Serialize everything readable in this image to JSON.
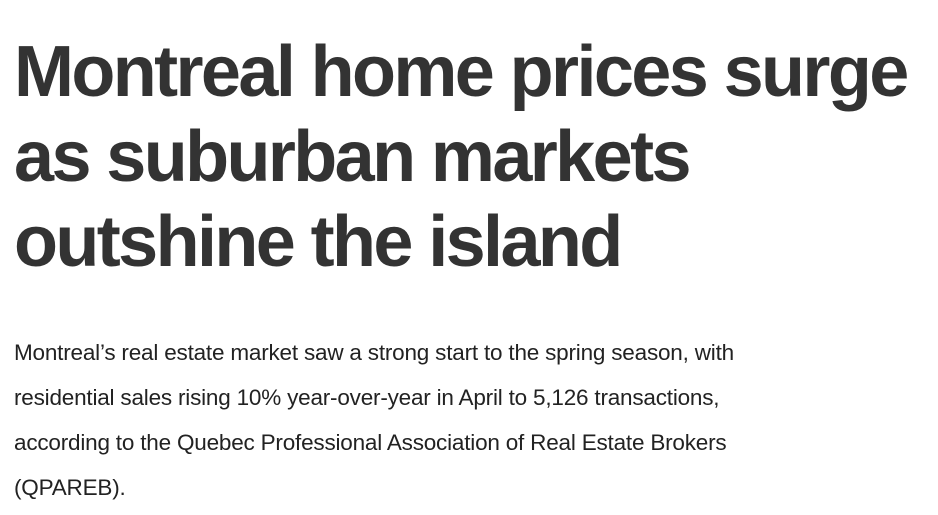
{
  "article": {
    "headline_lines": [
      "Montreal home prices surge",
      "as suburban markets",
      "outshine the island"
    ],
    "body_lines": [
      "Montreal’s real estate market saw a strong start to the spring season, with",
      "residential sales rising 10% year-over-year in April to 5,126 transactions,",
      "according to the Quebec Professional Association of Real Estate Brokers",
      "(QPAREB)."
    ]
  },
  "colors": {
    "text": "#333333"
  }
}
